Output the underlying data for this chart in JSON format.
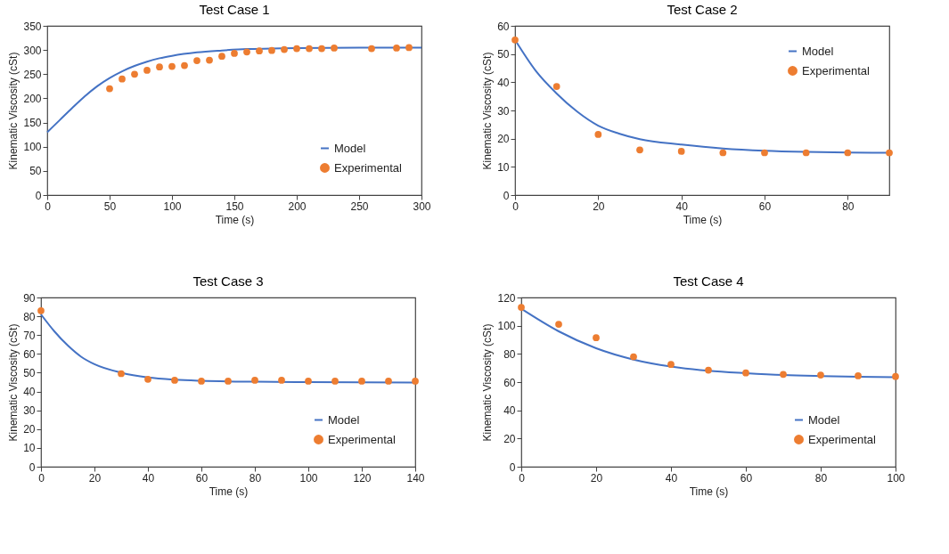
{
  "chart_data": [
    {
      "type": "line",
      "title": "Test Case 1",
      "xlabel": "Time (s)",
      "ylabel": "Kinematic Viscosity (cSt)",
      "xlim": [
        0,
        300
      ],
      "xticks": [
        0,
        50,
        100,
        150,
        200,
        250,
        300
      ],
      "ylim": [
        0,
        350
      ],
      "yticks": [
        0,
        50,
        100,
        150,
        200,
        250,
        300,
        350
      ],
      "grid": false,
      "legend": "bottom right",
      "series": [
        {
          "name": "Model",
          "color": "#4472c4",
          "marker": "none",
          "line_style": "solid",
          "x": [
            0,
            10,
            20,
            30,
            40,
            50,
            60,
            70,
            80,
            90,
            100,
            120,
            140,
            160,
            180,
            200,
            250,
            300
          ],
          "values": [
            130,
            155,
            180,
            204,
            225,
            242,
            256,
            267,
            276,
            283,
            288,
            295,
            299,
            302,
            303,
            304,
            305,
            305
          ]
        },
        {
          "name": "Experimental",
          "type": "scatter",
          "color": "#ed7d31",
          "marker": "circle",
          "x": [
            50,
            60,
            70,
            80,
            90,
            100,
            110,
            120,
            130,
            140,
            150,
            160,
            170,
            180,
            190,
            200,
            210,
            220,
            230,
            260,
            280,
            290
          ],
          "values": [
            220,
            240,
            250,
            258,
            265,
            266,
            268,
            278,
            279,
            287,
            293,
            296,
            298,
            299,
            301,
            303,
            303,
            303,
            304,
            303,
            304,
            305
          ]
        }
      ]
    },
    {
      "type": "line",
      "title": "Test Case 2",
      "xlabel": "Time (s)",
      "ylabel": "Kinematic Viscosity (cSt)",
      "xlim": [
        0,
        90
      ],
      "xticks": [
        0,
        20,
        40,
        60,
        80
      ],
      "ylim": [
        0,
        60
      ],
      "yticks": [
        0,
        10,
        20,
        30,
        40,
        50,
        60
      ],
      "grid": false,
      "legend": "top right",
      "series": [
        {
          "name": "Model",
          "color": "#4472c4",
          "marker": "none",
          "line_style": "solid",
          "x": [
            0,
            5,
            10,
            15,
            20,
            25,
            30,
            40,
            50,
            60,
            70,
            80,
            90
          ],
          "values": [
            55,
            44,
            36,
            29.5,
            24.6,
            21.8,
            19.8,
            17.9,
            16.5,
            15.7,
            15.3,
            15.1,
            15
          ]
        },
        {
          "name": "Experimental",
          "type": "scatter",
          "color": "#ed7d31",
          "marker": "circle",
          "x": [
            0,
            10,
            20,
            30,
            40,
            50,
            60,
            70,
            80,
            90
          ],
          "values": [
            55,
            38.5,
            21.5,
            16,
            15.5,
            15,
            15,
            15,
            15,
            15
          ]
        }
      ]
    },
    {
      "type": "line",
      "title": "Test Case 3",
      "xlabel": "Time (s)",
      "ylabel": "Kinematic Viscosity (cSt)",
      "xlim": [
        0,
        140
      ],
      "xticks": [
        0,
        20,
        40,
        60,
        80,
        100,
        120,
        140
      ],
      "ylim": [
        0,
        90
      ],
      "yticks": [
        0,
        10,
        20,
        30,
        40,
        50,
        60,
        70,
        80,
        90
      ],
      "grid": false,
      "legend": "bottom right",
      "series": [
        {
          "name": "Model",
          "color": "#4472c4",
          "marker": "none",
          "line_style": "solid",
          "x": [
            0,
            5,
            10,
            15,
            20,
            30,
            40,
            50,
            60,
            80,
            100,
            140
          ],
          "values": [
            81,
            72,
            64.5,
            58.5,
            54.5,
            50,
            47.5,
            46.3,
            45.7,
            45.2,
            45,
            44.8
          ]
        },
        {
          "name": "Experimental",
          "type": "scatter",
          "color": "#ed7d31",
          "marker": "circle",
          "x": [
            0,
            30,
            40,
            50,
            60,
            70,
            80,
            90,
            100,
            110,
            120,
            130,
            140
          ],
          "values": [
            83,
            49.5,
            46.5,
            46,
            45.5,
            45.5,
            46,
            46,
            45.5,
            45.5,
            45.5,
            45.5,
            45.5
          ]
        }
      ]
    },
    {
      "type": "line",
      "title": "Test Case 4",
      "xlabel": "Time (s)",
      "ylabel": "Kinematic Viscosity (cSt)",
      "xlim": [
        0,
        100
      ],
      "xticks": [
        0,
        20,
        40,
        60,
        80,
        100
      ],
      "ylim": [
        0,
        120
      ],
      "yticks": [
        0,
        20,
        40,
        60,
        80,
        100,
        120
      ],
      "grid": false,
      "legend": "bottom right",
      "series": [
        {
          "name": "Model",
          "color": "#4472c4",
          "marker": "none",
          "line_style": "solid",
          "x": [
            0,
            10,
            20,
            30,
            40,
            50,
            60,
            70,
            80,
            90,
            100
          ],
          "values": [
            112,
            96,
            84,
            76,
            71,
            68,
            66.3,
            65,
            64.3,
            63.8,
            63.5
          ]
        },
        {
          "name": "Experimental",
          "type": "scatter",
          "color": "#ed7d31",
          "marker": "circle",
          "x": [
            0,
            10,
            20,
            30,
            40,
            50,
            60,
            70,
            80,
            90,
            100
          ],
          "values": [
            113,
            101,
            91.5,
            78,
            72.5,
            68.5,
            66.5,
            65.5,
            65,
            64.5,
            64
          ]
        }
      ]
    }
  ]
}
